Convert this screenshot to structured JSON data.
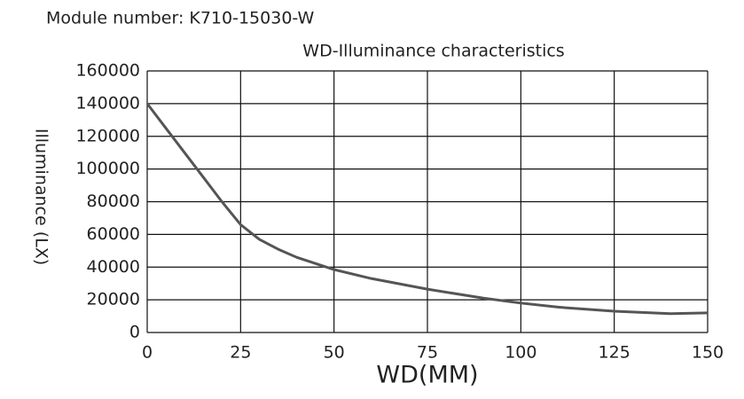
{
  "chart_data": {
    "type": "line",
    "header": "Module number: K710-15030-W",
    "title": "WD-Illuminance characteristics",
    "x_label": "WD(MM)",
    "y_label": "Illuminance (LX)",
    "x": [
      0,
      5,
      10,
      15,
      20,
      25,
      30,
      35,
      40,
      50,
      60,
      75,
      90,
      100,
      110,
      125,
      140,
      150
    ],
    "values": [
      140000,
      125000,
      110000,
      95000,
      80000,
      66000,
      57000,
      51000,
      46000,
      38500,
      33000,
      26500,
      21000,
      18000,
      15500,
      13000,
      11500,
      12000
    ],
    "color": "#555555",
    "xlim": [
      0,
      150
    ],
    "xticks": [
      0,
      25,
      50,
      75,
      100,
      125,
      150
    ],
    "ylim": [
      0,
      160000
    ],
    "yticks": [
      0,
      20000,
      40000,
      60000,
      80000,
      100000,
      120000,
      140000,
      160000
    ],
    "grid": true
  }
}
